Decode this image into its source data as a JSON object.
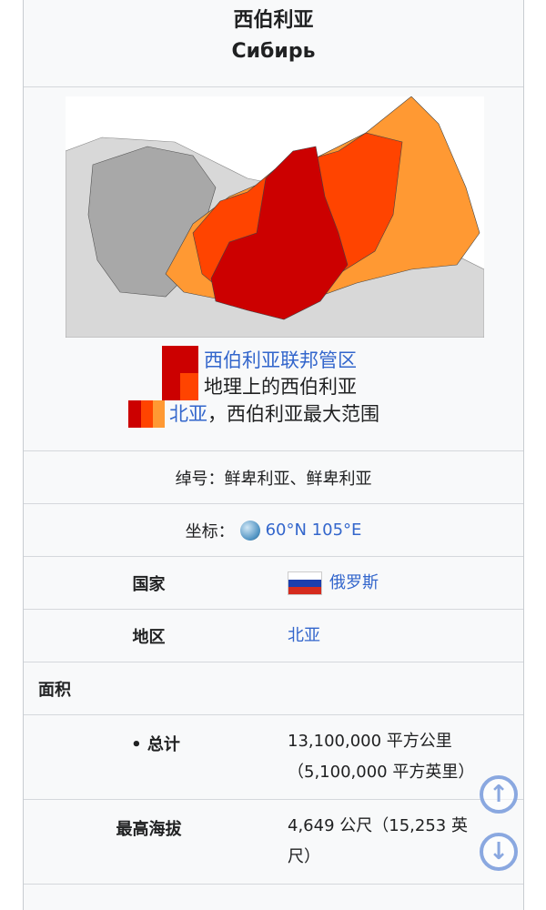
{
  "title": {
    "zh": "西伯利亚",
    "ru": "Сибирь"
  },
  "map": {
    "legend": [
      {
        "text": "西伯利亚联邦管区",
        "link": true
      },
      {
        "text": "地理上的西伯利亚",
        "link": false
      },
      {
        "link_text": "北亚",
        "rest": "，西伯利亚最大范围"
      }
    ],
    "colors": {
      "federal_district": "#cc0000",
      "geographic": "#ff4400",
      "north_asia": "#ff9933",
      "russia_other": "#a8a8a8",
      "outside": "#d8d8d8"
    }
  },
  "nickname": "绰号：鲜卑利亚、鲜卑利亚",
  "coordinates": {
    "label": "坐标：",
    "icon": "globe-icon",
    "value": "60°N 105°E"
  },
  "rows": {
    "country": {
      "label": "国家",
      "value": "俄罗斯",
      "icon": "russia-flag-icon"
    },
    "region": {
      "label": "地区",
      "value": "北亚"
    },
    "area": {
      "label": "面积"
    },
    "total": {
      "label": "• 总计",
      "value_line1": "13,100,000 平方公里",
      "value_line2": "（5,100,000 平方英里）"
    },
    "elevation": {
      "label": "最高海拔",
      "value_line1": "4,649 公尺（15,253 英",
      "value_line2": "尺）"
    }
  },
  "nav": {
    "up": "scroll-up",
    "down": "scroll-down"
  }
}
